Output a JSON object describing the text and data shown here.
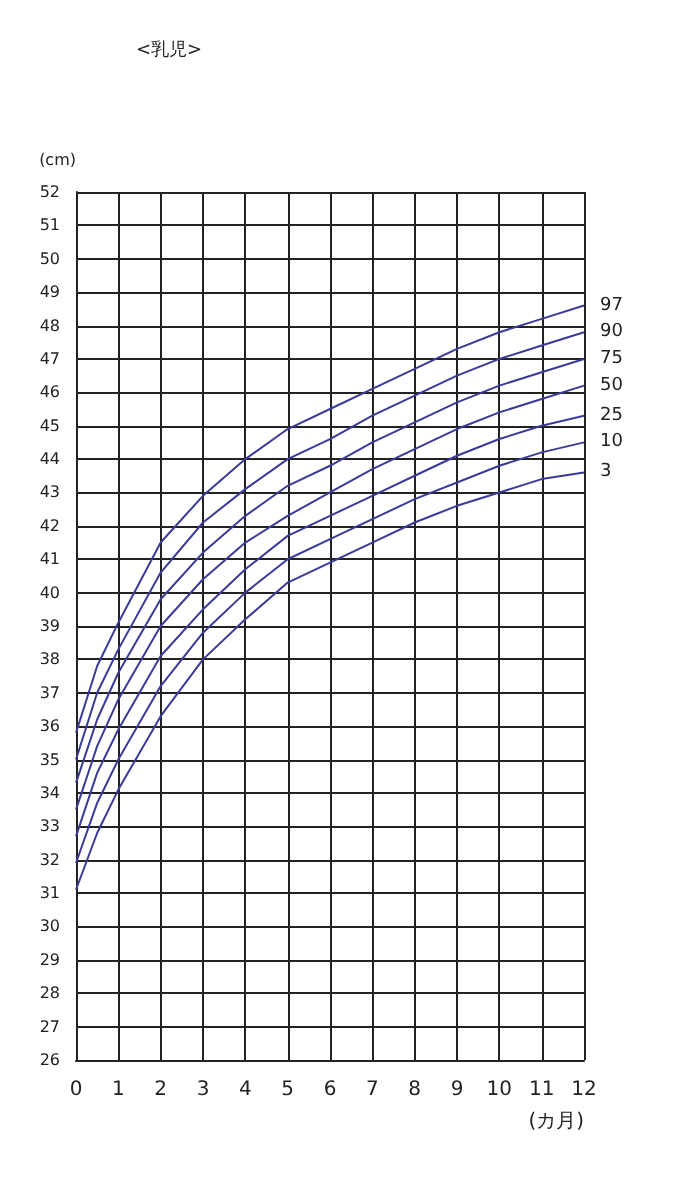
{
  "chart_data": {
    "type": "line",
    "title": "<乳児>",
    "ylabel": "(cm)",
    "xlabel": "(カ月)",
    "x": [
      0,
      0.5,
      1,
      2,
      3,
      4,
      5,
      6,
      7,
      8,
      9,
      10,
      11,
      12
    ],
    "series": [
      {
        "name": "97",
        "color": "#3a3a9a",
        "values": [
          35.8,
          37.8,
          39.1,
          41.5,
          42.9,
          44.0,
          44.9,
          45.5,
          46.1,
          46.7,
          47.3,
          47.8,
          48.2,
          48.6
        ]
      },
      {
        "name": "90",
        "color": "#3a3a9a",
        "values": [
          35.0,
          37.0,
          38.3,
          40.6,
          42.1,
          43.1,
          44.0,
          44.6,
          45.3,
          45.9,
          46.5,
          47.0,
          47.4,
          47.8
        ]
      },
      {
        "name": "75",
        "color": "#3a3a9a",
        "values": [
          34.3,
          36.2,
          37.6,
          39.8,
          41.2,
          42.3,
          43.2,
          43.8,
          44.5,
          45.1,
          45.7,
          46.2,
          46.6,
          47.0
        ]
      },
      {
        "name": "50",
        "color": "#3a3a9a",
        "values": [
          33.5,
          35.4,
          36.8,
          39.0,
          40.4,
          41.5,
          42.3,
          43.0,
          43.7,
          44.3,
          44.9,
          45.4,
          45.8,
          46.2
        ]
      },
      {
        "name": "25",
        "color": "#3a3a9a",
        "values": [
          32.7,
          34.6,
          35.9,
          38.1,
          39.5,
          40.7,
          41.7,
          42.3,
          42.9,
          43.5,
          44.1,
          44.6,
          45.0,
          45.3
        ]
      },
      {
        "name": "10",
        "color": "#3a3a9a",
        "values": [
          31.9,
          33.7,
          35.0,
          37.2,
          38.8,
          40.0,
          41.0,
          41.6,
          42.2,
          42.8,
          43.3,
          43.8,
          44.2,
          44.5
        ]
      },
      {
        "name": "3",
        "color": "#3a3a9a",
        "values": [
          31.1,
          32.8,
          34.1,
          36.3,
          38.0,
          39.2,
          40.3,
          40.9,
          41.5,
          42.1,
          42.6,
          43.0,
          43.4,
          43.6
        ]
      }
    ],
    "xlim": [
      0,
      12
    ],
    "xticks": [
      0,
      1,
      2,
      3,
      4,
      5,
      6,
      7,
      8,
      9,
      10,
      11,
      12
    ],
    "ylim": [
      26,
      52
    ],
    "yticks": [
      26,
      27,
      28,
      29,
      30,
      31,
      32,
      33,
      34,
      35,
      36,
      37,
      38,
      39,
      40,
      41,
      42,
      43,
      44,
      45,
      46,
      47,
      48,
      49,
      50,
      51,
      52
    ],
    "grid": true,
    "legend": false,
    "marker": "none",
    "line_style": "solid"
  }
}
